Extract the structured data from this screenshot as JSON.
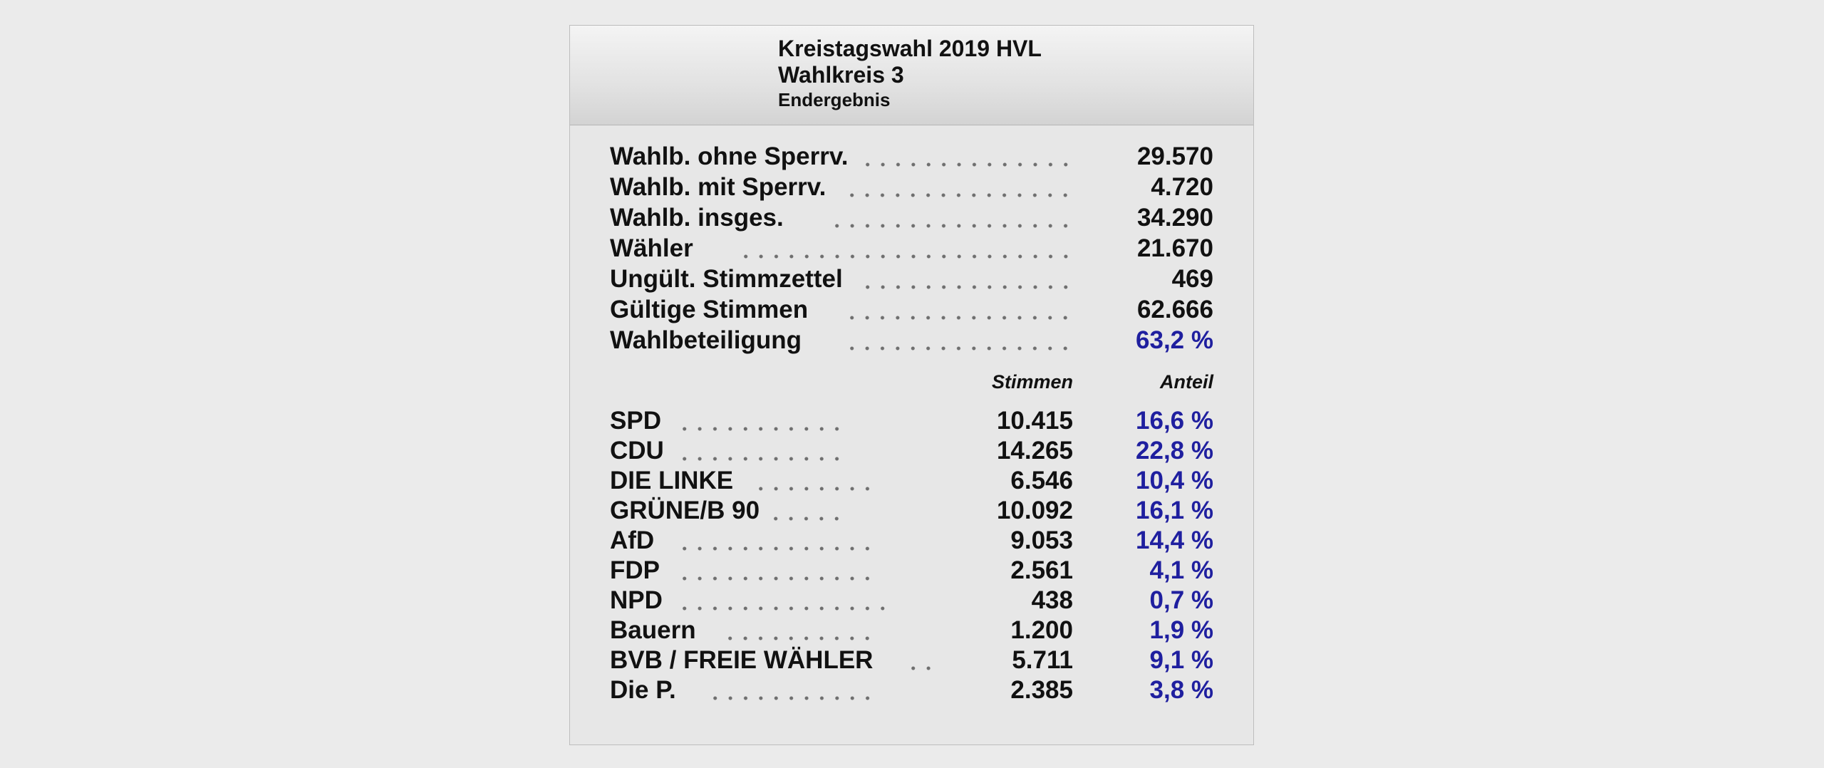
{
  "header": {
    "title": "Kreistagswahl 2019 HVL",
    "subtitle": "Wahlkreis 3",
    "note": "Endergebnis"
  },
  "summary": [
    {
      "label": "Wahlb. ohne Sperrv.",
      "value": "29.570"
    },
    {
      "label": "Wahlb. mit Sperrv.",
      "value": "4.720"
    },
    {
      "label": "Wahlb. insges.",
      "value": "34.290"
    },
    {
      "label": "Wähler",
      "value": "21.670"
    },
    {
      "label": "Ungült. Stimmzettel",
      "value": "469"
    },
    {
      "label": "Gültige Stimmen",
      "value": "62.666"
    },
    {
      "label": "Wahlbeteiligung",
      "value": "63,2 %"
    }
  ],
  "columns": {
    "votes": "Stimmen",
    "share": "Anteil"
  },
  "parties": [
    {
      "name": "SPD",
      "votes": "10.415",
      "share": "16,6 %"
    },
    {
      "name": "CDU",
      "votes": "14.265",
      "share": "22,8 %"
    },
    {
      "name": "DIE LINKE",
      "votes": "6.546",
      "share": "10,4 %"
    },
    {
      "name": "GRÜNE/B 90",
      "votes": "10.092",
      "share": "16,1 %"
    },
    {
      "name": "AfD",
      "votes": "9.053",
      "share": "14,4 %"
    },
    {
      "name": "FDP",
      "votes": "2.561",
      "share": "4,1 %"
    },
    {
      "name": "NPD",
      "votes": "438",
      "share": "0,7 %"
    },
    {
      "name": "Bauern",
      "votes": "1.200",
      "share": "1,9 %"
    },
    {
      "name": "BVB / FREIE WÄHLER",
      "votes": "5.711",
      "share": "9,1 %"
    },
    {
      "name": "Die P.",
      "votes": "2.385",
      "share": "3,8 %"
    }
  ],
  "colors": {
    "percent": "#1f1f9f",
    "text": "#111111",
    "background": "#ebebeb"
  }
}
